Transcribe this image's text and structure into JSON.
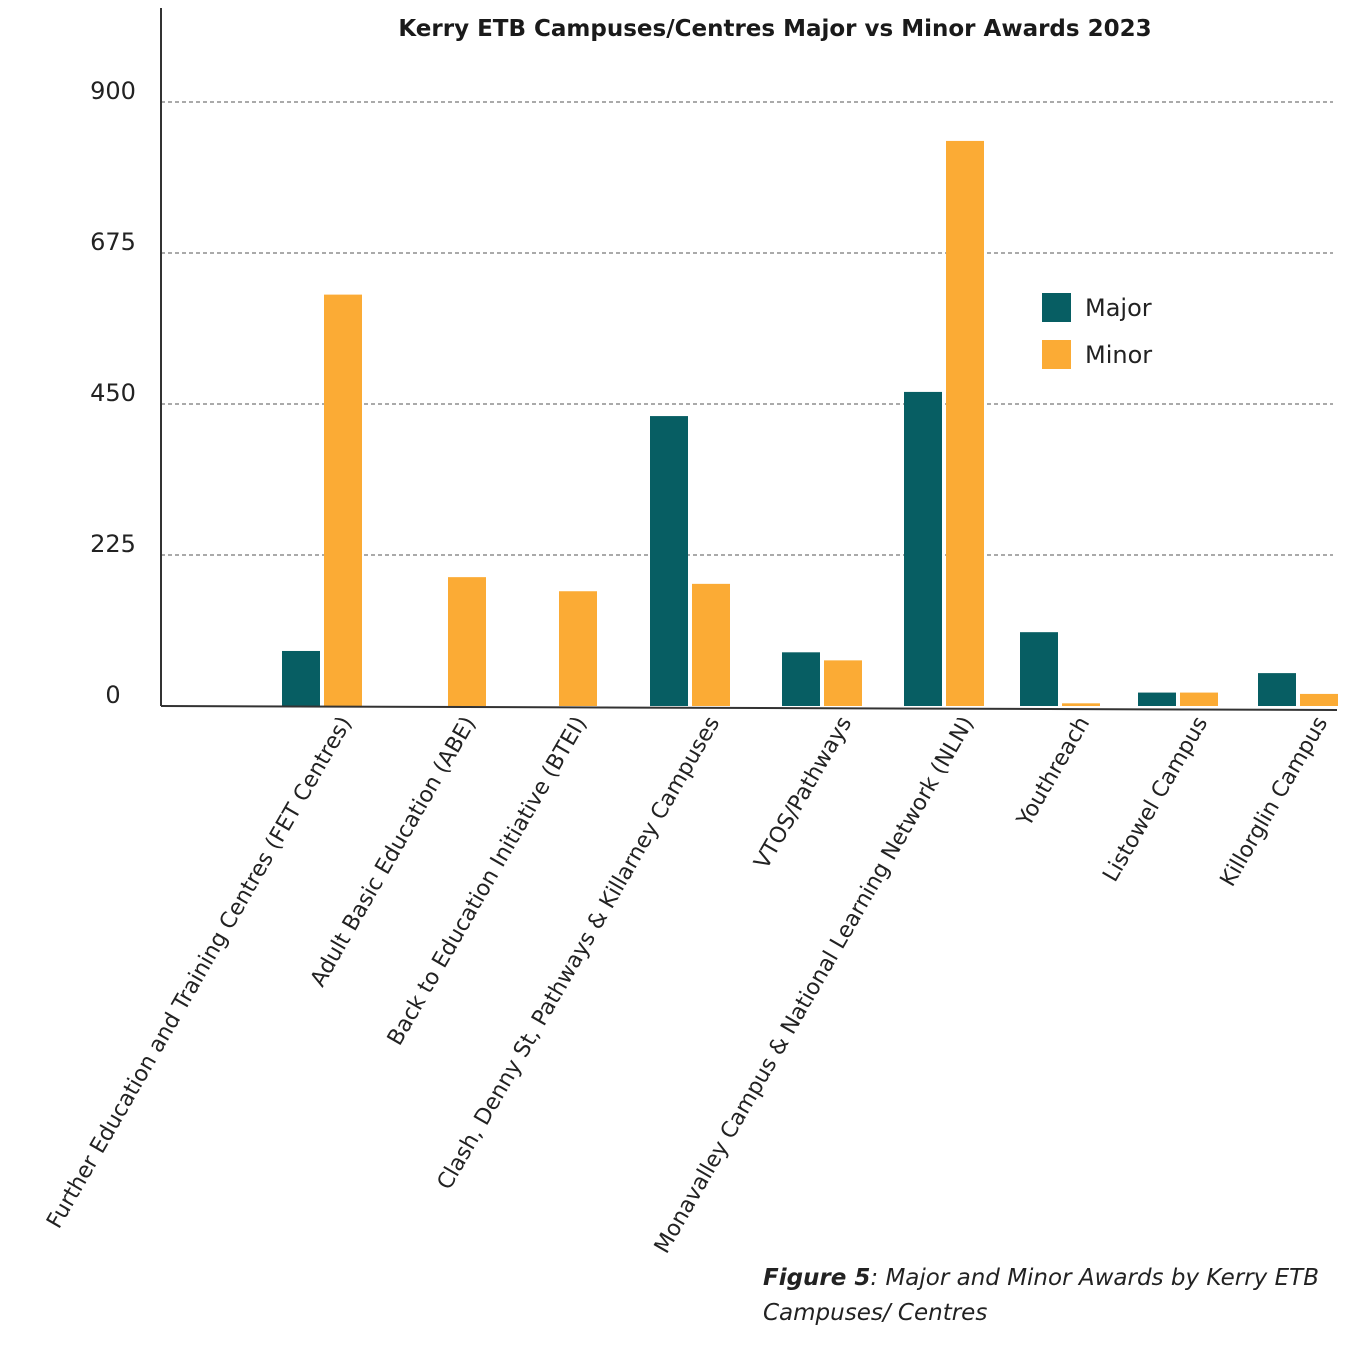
{
  "chart_data": {
    "type": "bar",
    "title": "Kerry ETB Campuses/Centres Major vs Minor Awards 2023",
    "xlabel": "",
    "ylabel": "",
    "ylim": [
      0,
      900
    ],
    "yticks": [
      0,
      225,
      450,
      675,
      900
    ],
    "grid": true,
    "legend_position": "top-right",
    "categories": [
      "Further Education and Training Centres (FET Centres)",
      "Adult Basic Education (ABE)",
      "Back to Education Initiative (BTEI)",
      "Clash, Denny St, Pathways & Killarney Campuses",
      "VTOS/Pathways",
      "Monavalley Campus & National Learning Network (NLN)",
      "Youthreach",
      "Listowel Campus",
      "Killorglin Campus"
    ],
    "series": [
      {
        "name": "Major",
        "color": "#075e63",
        "values": [
          82,
          0,
          0,
          432,
          80,
          468,
          110,
          20,
          49
        ]
      },
      {
        "name": "Minor",
        "color": "#fbab35",
        "values": [
          613,
          192,
          171,
          182,
          68,
          842,
          4,
          20,
          18
        ]
      }
    ]
  },
  "caption": {
    "label": "Figure 5",
    "text": ": Major and Minor Awards by Kerry ETB Campuses/ Centres"
  }
}
